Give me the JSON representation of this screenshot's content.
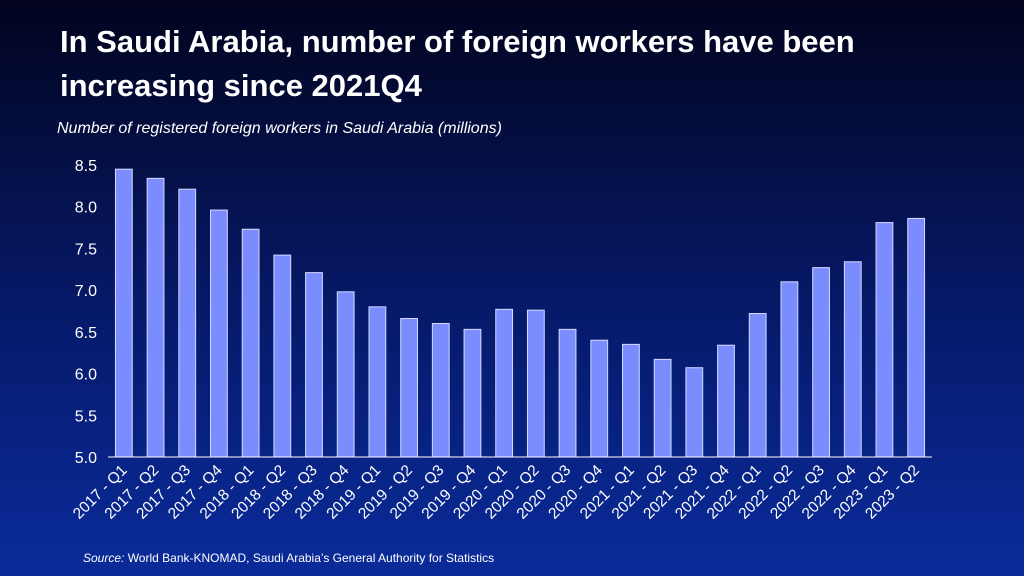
{
  "slide": {
    "title": "In Saudi Arabia, number of foreign workers have been increasing since 2021Q4",
    "subtitle": "Number of registered foreign workers in Saudi Arabia (millions)",
    "source_label": "Source:",
    "source_text": " World Bank-KNOMAD, Saudi Arabia’s General Authority for Statistics"
  },
  "chart_data": {
    "type": "bar",
    "categories": [
      "2017 - Q1",
      "2017 - Q2",
      "2017 - Q3",
      "2017 - Q4",
      "2018 - Q1",
      "2018 - Q2",
      "2018 - Q3",
      "2018 - Q4",
      "2019 - Q1",
      "2019 - Q2",
      "2019 - Q3",
      "2019 - Q4",
      "2020 - Q1",
      "2020 - Q2",
      "2020 - Q3",
      "2020 - Q4",
      "2021 - Q1",
      "2021 - Q2",
      "2021 - Q3",
      "2021 - Q4",
      "2022 - Q1",
      "2022 - Q2",
      "2022 - Q3",
      "2022 - Q4",
      "2023 - Q1",
      "2023 - Q2"
    ],
    "values": [
      8.45,
      8.34,
      8.21,
      7.96,
      7.73,
      7.42,
      7.21,
      6.98,
      6.8,
      6.66,
      6.6,
      6.53,
      6.77,
      6.76,
      6.53,
      6.4,
      6.35,
      6.17,
      6.07,
      6.34,
      6.72,
      7.1,
      7.27,
      7.34,
      7.81,
      7.86
    ],
    "ylim": [
      5.0,
      8.5
    ],
    "yticks": [
      "5.0",
      "5.5",
      "6.0",
      "6.5",
      "7.0",
      "7.5",
      "8.0",
      "8.5"
    ],
    "grid": false,
    "bar_color": "#7b8cff",
    "bar_edge_color": "#d4daff",
    "axis_color": "#ffffff"
  }
}
